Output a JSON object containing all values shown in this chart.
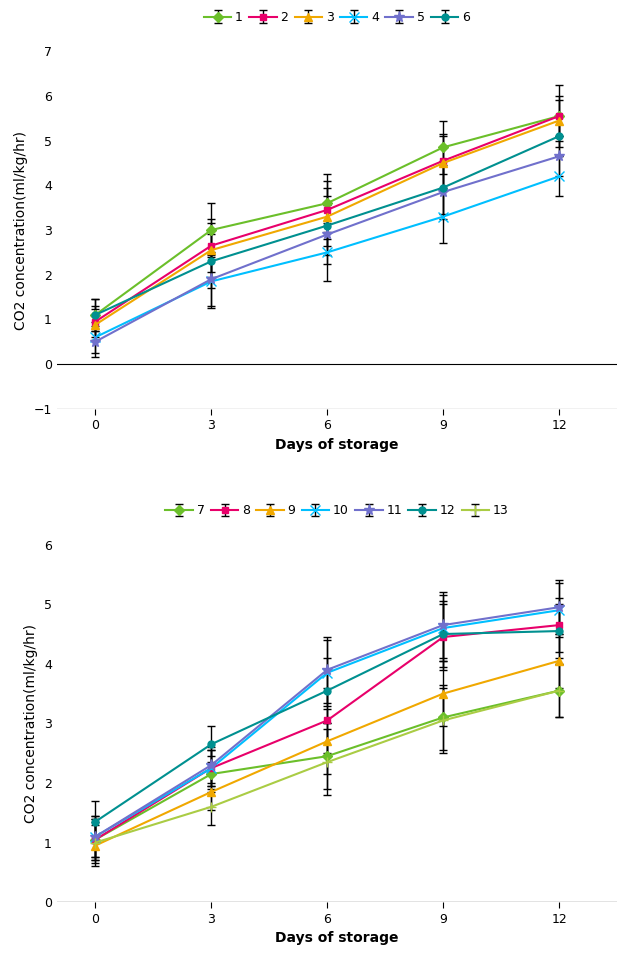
{
  "top_chart": {
    "series": [
      {
        "label": "1",
        "color": "#6BBF2A",
        "marker": "D",
        "markersize": 5,
        "values": [
          1.1,
          3.0,
          3.6,
          4.85,
          5.55
        ],
        "errors": [
          0.35,
          0.6,
          0.65,
          0.6,
          0.7
        ]
      },
      {
        "label": "2",
        "color": "#E8006A",
        "marker": "s",
        "markersize": 5,
        "values": [
          0.95,
          2.65,
          3.45,
          4.55,
          5.55
        ],
        "errors": [
          0.35,
          0.6,
          0.65,
          0.6,
          0.45
        ]
      },
      {
        "label": "3",
        "color": "#F0A800",
        "marker": "^",
        "markersize": 6,
        "values": [
          0.88,
          2.55,
          3.3,
          4.5,
          5.45
        ],
        "errors": [
          0.35,
          0.6,
          0.65,
          0.6,
          0.45
        ]
      },
      {
        "label": "4",
        "color": "#00BFFF",
        "marker": "x",
        "markersize": 7,
        "linewidth_marker": 1.5,
        "values": [
          0.6,
          1.85,
          2.5,
          3.3,
          4.2
        ],
        "errors": [
          0.35,
          0.6,
          0.65,
          0.6,
          0.45
        ]
      },
      {
        "label": "5",
        "color": "#7070CC",
        "marker": "*",
        "markersize": 8,
        "values": [
          0.5,
          1.9,
          2.9,
          3.85,
          4.65
        ],
        "errors": [
          0.35,
          0.6,
          0.65,
          0.6,
          0.45
        ]
      },
      {
        "label": "6",
        "color": "#009090",
        "marker": "o",
        "markersize": 5,
        "values": [
          1.1,
          2.3,
          3.1,
          3.95,
          5.1
        ],
        "errors": [
          0.35,
          0.6,
          0.65,
          0.6,
          0.45
        ]
      }
    ],
    "xlim": [
      -1.0,
      13.5
    ],
    "ylim": [
      -1.0,
      7.0
    ],
    "yticks": [
      -1,
      0,
      1,
      2,
      3,
      4,
      5,
      6,
      7
    ],
    "xticks": [
      0,
      3,
      6,
      9,
      12
    ],
    "xlabel": "Days of storage",
    "ylabel": "CO2 concentration(ml/kg/hr)"
  },
  "bottom_chart": {
    "series": [
      {
        "label": "7",
        "color": "#6BBF2A",
        "marker": "D",
        "markersize": 5,
        "values": [
          1.05,
          2.15,
          2.45,
          3.1,
          3.55
        ],
        "errors": [
          0.35,
          0.3,
          0.55,
          0.55,
          0.45
        ]
      },
      {
        "label": "8",
        "color": "#E8006A",
        "marker": "s",
        "markersize": 5,
        "values": [
          1.05,
          2.25,
          3.05,
          4.45,
          4.65
        ],
        "errors": [
          0.35,
          0.3,
          0.55,
          0.55,
          0.45
        ]
      },
      {
        "label": "9",
        "color": "#F0A800",
        "marker": "^",
        "markersize": 6,
        "values": [
          0.95,
          1.85,
          2.7,
          3.5,
          4.05
        ],
        "errors": [
          0.35,
          0.3,
          0.55,
          0.55,
          0.45
        ]
      },
      {
        "label": "10",
        "color": "#00BFFF",
        "marker": "x",
        "markersize": 7,
        "values": [
          1.1,
          2.25,
          3.85,
          4.6,
          4.9
        ],
        "errors": [
          0.35,
          0.3,
          0.55,
          0.55,
          0.45
        ]
      },
      {
        "label": "11",
        "color": "#7070CC",
        "marker": "*",
        "markersize": 8,
        "values": [
          1.1,
          2.3,
          3.9,
          4.65,
          4.95
        ],
        "errors": [
          0.35,
          0.3,
          0.55,
          0.55,
          0.45
        ]
      },
      {
        "label": "12",
        "color": "#009090",
        "marker": "o",
        "markersize": 5,
        "values": [
          1.35,
          2.65,
          3.55,
          4.5,
          4.55
        ],
        "errors": [
          0.35,
          0.3,
          0.55,
          0.55,
          0.45
        ]
      },
      {
        "label": "13",
        "color": "#AACC44",
        "marker": "+",
        "markersize": 7,
        "values": [
          1.0,
          1.6,
          2.35,
          3.05,
          3.55
        ],
        "errors": [
          0.35,
          0.3,
          0.55,
          0.55,
          0.45
        ]
      }
    ],
    "xlim": [
      -1.0,
      13.5
    ],
    "ylim": [
      0.0,
      6.0
    ],
    "yticks": [
      0,
      1,
      2,
      3,
      4,
      5,
      6
    ],
    "xticks": [
      0,
      3,
      6,
      9,
      12
    ],
    "xlabel": "Days of storage",
    "ylabel": "CO2 concentration(ml/kg/hr)"
  },
  "xdata": [
    0,
    3,
    6,
    9,
    12
  ],
  "linewidth": 1.5,
  "capsize": 3,
  "elinewidth": 1.0,
  "legend_fontsize": 9,
  "axis_label_fontsize": 10,
  "tick_fontsize": 9,
  "bg_color": "#FFFFFF"
}
